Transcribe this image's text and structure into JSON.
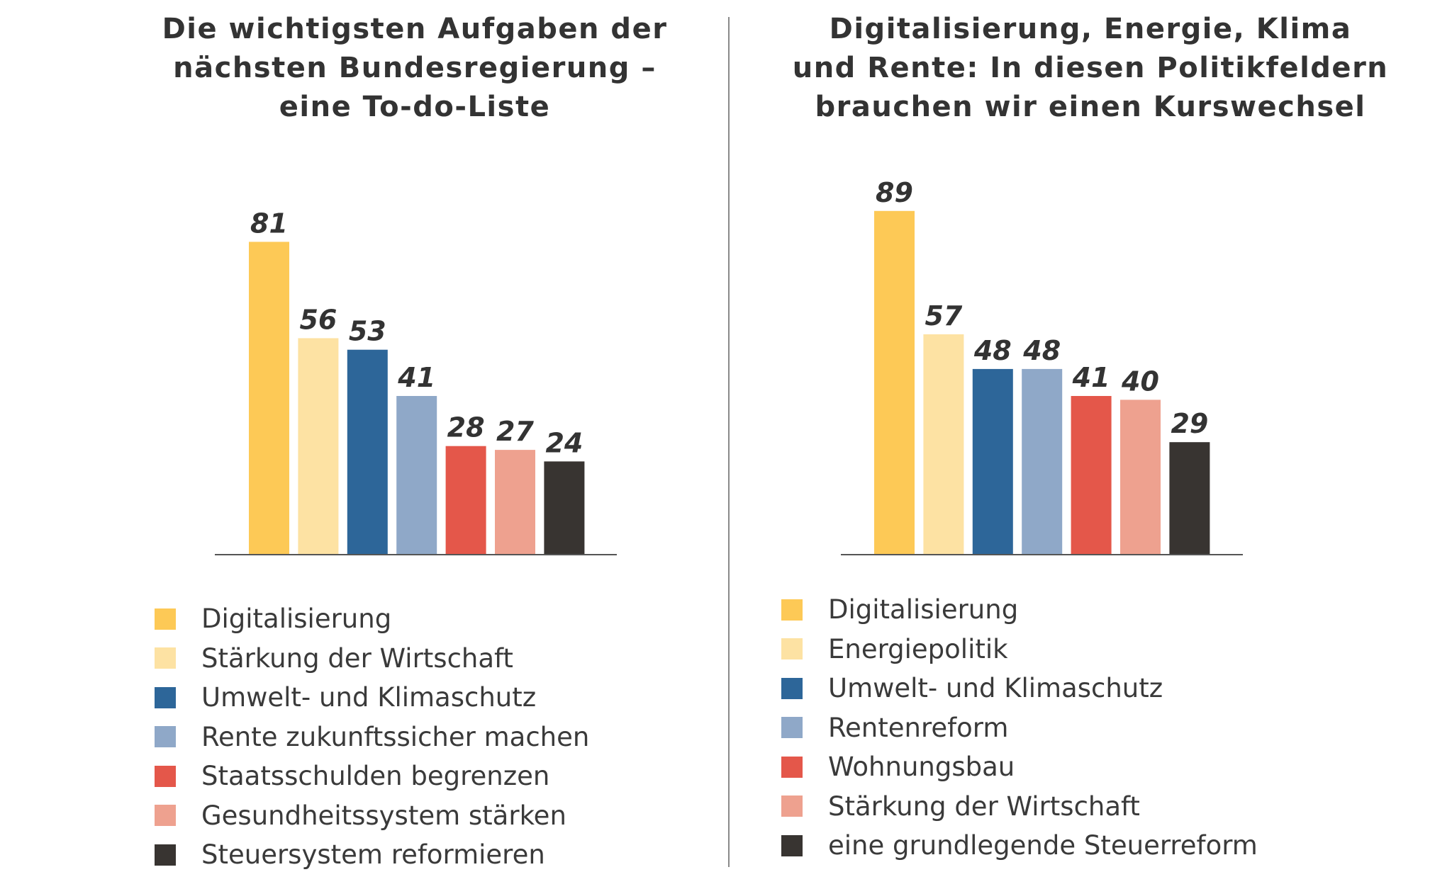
{
  "chart_data": [
    {
      "type": "bar",
      "title": [
        "Die wichtigsten Aufgaben der",
        "nächsten Bundesregierung –",
        "eine To-do-Liste"
      ],
      "categories": [
        "Digitalisierung",
        "Stärkung der Wirtschaft",
        "Umwelt- und Klimaschutz",
        "Rente zukunftssicher machen",
        "Staatsschulden begrenzen",
        "Gesundheitssystem stärken",
        "Steuersystem reformieren"
      ],
      "values": [
        81,
        56,
        53,
        41,
        28,
        27,
        24
      ],
      "colors": [
        "#fdc956",
        "#fde2a3",
        "#2d6699",
        "#8fa8c8",
        "#e4574a",
        "#eea18f",
        "#383431"
      ],
      "legend_position": "bottom",
      "grid": false
    },
    {
      "type": "bar",
      "title": [
        "Digitalisierung, Energie, Klima",
        "und Rente: In diesen Politikfeldern",
        "brauchen wir einen Kurswechsel"
      ],
      "categories": [
        "Digitalisierung",
        "Energiepolitik",
        "Umwelt- und Klimaschutz",
        "Rentenreform",
        "Wohnungsbau",
        "Stärkung der Wirtschaft",
        "eine grundlegende Steuerreform"
      ],
      "values": [
        89,
        57,
        48,
        48,
        41,
        40,
        29
      ],
      "colors": [
        "#fdc956",
        "#fde2a3",
        "#2d6699",
        "#8fa8c8",
        "#e4574a",
        "#eea18f",
        "#383431"
      ],
      "legend_position": "bottom",
      "grid": false
    }
  ]
}
